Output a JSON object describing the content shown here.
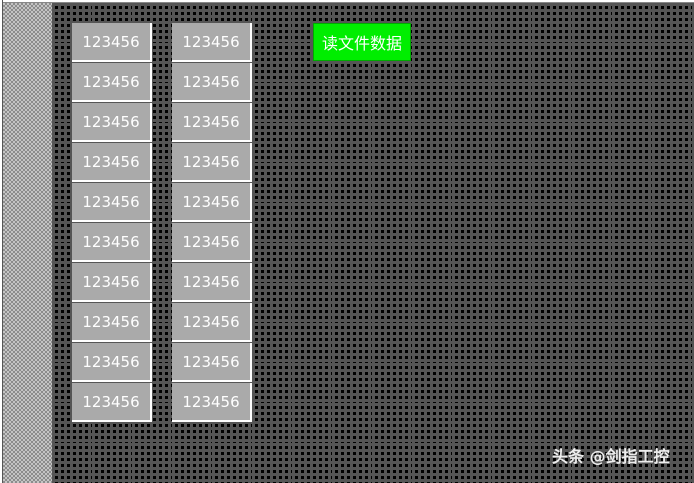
{
  "columns": [
    {
      "values": [
        "123456",
        "123456",
        "123456",
        "123456",
        "123456",
        "123456",
        "123456",
        "123456",
        "123456",
        "123456"
      ]
    },
    {
      "values": [
        "123456",
        "123456",
        "123456",
        "123456",
        "123456",
        "123456",
        "123456",
        "123456",
        "123456",
        "123456"
      ]
    }
  ],
  "read_button": {
    "label": "读文件数据",
    "color": "#00ee00"
  },
  "watermark": "头条 @剑指工控"
}
